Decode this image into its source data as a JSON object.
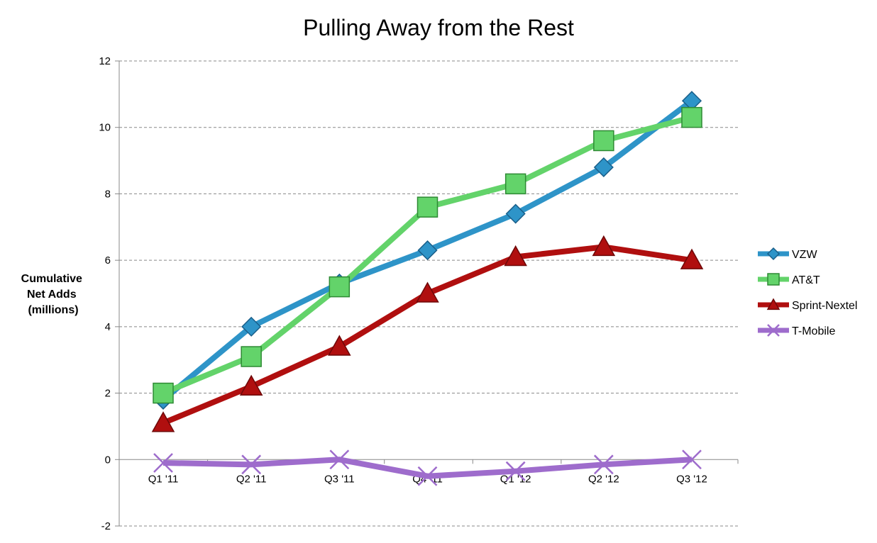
{
  "chart_data": {
    "type": "line",
    "title": "Pulling Away from the Rest",
    "ylabel": "Cumulative Net Adds (millions)",
    "ylabel_lines": [
      "Cumulative",
      "Net Adds",
      "(millions)"
    ],
    "xlabel": "",
    "categories": [
      "Q1 '11",
      "Q2 '11",
      "Q3 '11",
      "Q4 '11",
      "Q1 '12",
      "Q2 '12",
      "Q3 '12"
    ],
    "ylim": [
      -2,
      12
    ],
    "yticks": [
      -2,
      0,
      2,
      4,
      6,
      8,
      10,
      12
    ],
    "grid": true,
    "legend_position": "right",
    "series": [
      {
        "name": "VZW",
        "values": [
          1.8,
          4.0,
          5.3,
          6.3,
          7.4,
          8.8,
          10.8
        ],
        "color": "#2e94c8",
        "marker": "diamond"
      },
      {
        "name": "AT&T",
        "values": [
          2.0,
          3.1,
          5.2,
          7.6,
          8.3,
          9.6,
          10.3
        ],
        "color": "#63d36a",
        "marker": "square"
      },
      {
        "name": "Sprint-Nextel",
        "values": [
          1.1,
          2.2,
          3.4,
          5.0,
          6.1,
          6.4,
          6.0
        ],
        "color": "#b00f0f",
        "marker": "triangle"
      },
      {
        "name": "T-Mobile",
        "values": [
          -0.1,
          -0.15,
          0.0,
          -0.5,
          -0.35,
          -0.15,
          0.0
        ],
        "color": "#9e6ccc",
        "marker": "x"
      }
    ]
  }
}
